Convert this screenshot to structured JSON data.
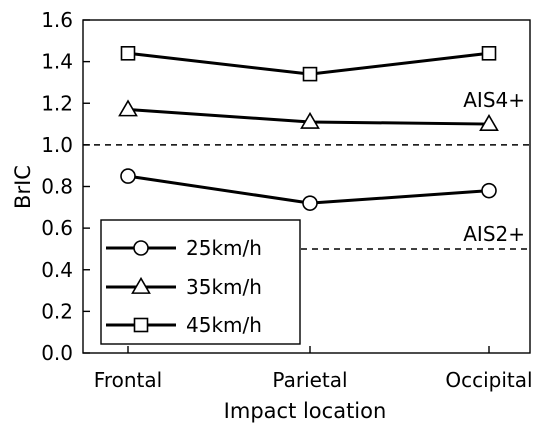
{
  "chart_data": {
    "type": "line",
    "title": "",
    "xlabel": "Impact location",
    "ylabel": "BrIC",
    "categories": [
      "Frontal",
      "Parietal",
      "Occipital"
    ],
    "ylim": [
      0.0,
      1.6
    ],
    "yticks": [
      "0.0",
      "0.2",
      "0.4",
      "0.6",
      "0.8",
      "1.0",
      "1.2",
      "1.4",
      "1.6"
    ],
    "grid": false,
    "legend_position": "bottom-left",
    "series": [
      {
        "name": "25km/h",
        "marker": "circle",
        "values": [
          0.85,
          0.72,
          0.78
        ]
      },
      {
        "name": "35km/h",
        "marker": "triangle",
        "values": [
          1.17,
          1.11,
          1.1
        ]
      },
      {
        "name": "45km/h",
        "marker": "square",
        "values": [
          1.44,
          1.34,
          1.44
        ]
      }
    ],
    "thresholds": [
      {
        "label": "AIS4+",
        "value": 1.0
      },
      {
        "label": "AIS2+",
        "value": 0.5
      }
    ],
    "line_color": "#000000",
    "marker_fill": "#ffffff"
  }
}
